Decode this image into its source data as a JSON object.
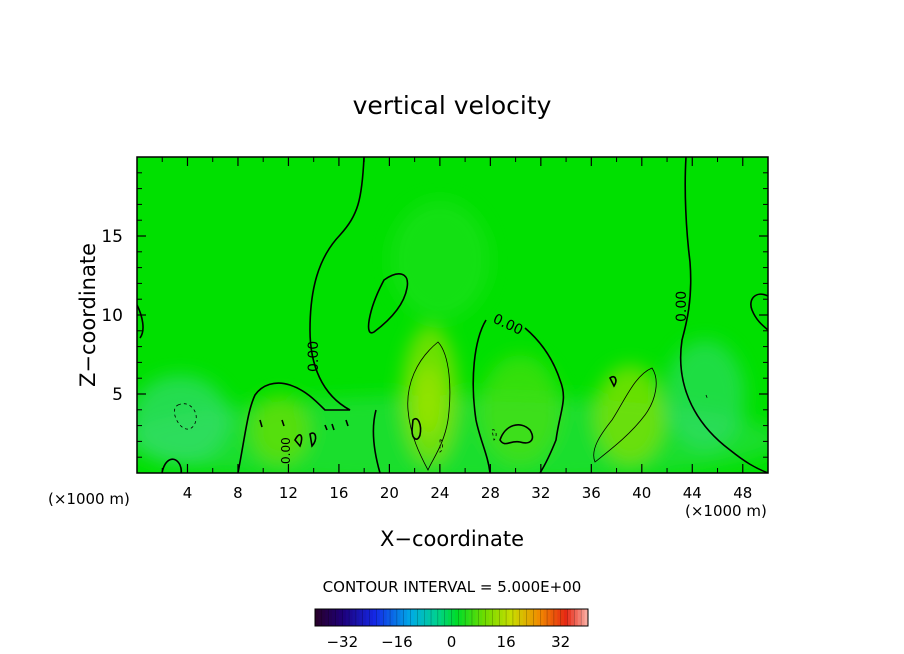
{
  "chart_data": {
    "type": "heatmap",
    "title": "vertical velocity",
    "xlabel": "X−coordinate",
    "ylabel": "Z−coordinate",
    "x_unit_left": "(×1000 m)",
    "x_unit_right": "(×1000 m)",
    "xlim": [
      0,
      50
    ],
    "ylim": [
      0,
      20
    ],
    "x_ticks": [
      4,
      8,
      12,
      16,
      20,
      24,
      28,
      32,
      36,
      40,
      44,
      48
    ],
    "y_ticks": [
      5,
      10,
      15
    ],
    "contour_interval_label": "CONTOUR INTERVAL = 5.000E+00",
    "contour_labels": [
      "0.00",
      "0.00",
      "0.00",
      "0.00"
    ],
    "colorbar": {
      "range": [
        -40,
        40
      ],
      "ticks": [
        "−32",
        "−16",
        "0",
        "16",
        "32"
      ],
      "tick_values": [
        -32,
        -16,
        0,
        16,
        32
      ]
    },
    "colors": {
      "background_field": "#00e000",
      "contour": "#000000",
      "updraft_core": "#8ee000",
      "weak_downdraft": "#30dc70"
    }
  }
}
